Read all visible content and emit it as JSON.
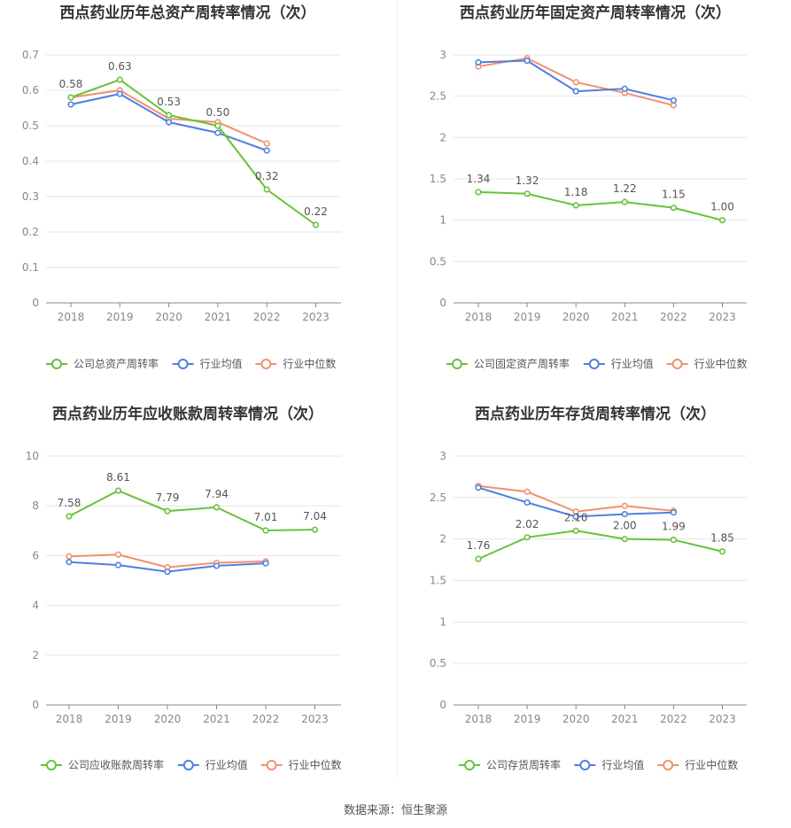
{
  "source": "数据来源：恒生聚源",
  "colors": {
    "company": "#67c23a",
    "avg": "#4e7fe0",
    "median": "#f3906e",
    "grid": "#e6e6e6",
    "axis": "#888888",
    "text": "#888888",
    "label": "#555555",
    "title": "#333333"
  },
  "chart_data": [
    {
      "type": "line",
      "title": "西点药业历年总资产周转率情况（次）",
      "categories": [
        "2018",
        "2019",
        "2020",
        "2021",
        "2022",
        "2023"
      ],
      "ylim": [
        0,
        0.7
      ],
      "yticks": [
        "0",
        "0.1",
        "0.2",
        "0.3",
        "0.4",
        "0.5",
        "0.6",
        "0.7"
      ],
      "grid": true,
      "legend_position": "bottom",
      "series": [
        {
          "name": "公司总资产周转率",
          "color": "company",
          "values": [
            0.58,
            0.63,
            0.53,
            0.5,
            0.32,
            0.22
          ],
          "labels": [
            "0.58",
            "0.63",
            "0.53",
            "0.50",
            "0.32",
            "0.22"
          ]
        },
        {
          "name": "行业均值",
          "color": "avg",
          "values": [
            0.56,
            0.59,
            0.51,
            0.48,
            0.43,
            null
          ]
        },
        {
          "name": "行业中位数",
          "color": "median",
          "values": [
            0.58,
            0.6,
            0.52,
            0.51,
            0.45,
            null
          ]
        }
      ]
    },
    {
      "type": "line",
      "title": "西点药业历年固定资产周转率情况（次）",
      "categories": [
        "2018",
        "2019",
        "2020",
        "2021",
        "2022",
        "2023"
      ],
      "ylim": [
        0,
        3
      ],
      "yticks": [
        "0",
        "0.5",
        "1",
        "1.5",
        "2",
        "2.5",
        "3"
      ],
      "grid": true,
      "legend_position": "bottom",
      "series": [
        {
          "name": "公司固定资产周转率",
          "color": "company",
          "values": [
            1.34,
            1.32,
            1.18,
            1.22,
            1.15,
            1.0
          ],
          "labels": [
            "1.34",
            "1.32",
            "1.18",
            "1.22",
            "1.15",
            "1.00"
          ]
        },
        {
          "name": "行业均值",
          "color": "avg",
          "values": [
            2.91,
            2.93,
            2.56,
            2.59,
            2.45,
            null
          ]
        },
        {
          "name": "行业中位数",
          "color": "median",
          "values": [
            2.86,
            2.96,
            2.67,
            2.54,
            2.39,
            null
          ]
        }
      ]
    },
    {
      "type": "line",
      "title": "西点药业历年应收账款周转率情况（次）",
      "categories": [
        "2018",
        "2019",
        "2020",
        "2021",
        "2022",
        "2023"
      ],
      "ylim": [
        0,
        10
      ],
      "yticks": [
        "0",
        "2",
        "4",
        "6",
        "8",
        "10"
      ],
      "grid": true,
      "legend_position": "bottom",
      "series": [
        {
          "name": "公司应收账款周转率",
          "color": "company",
          "values": [
            7.58,
            8.61,
            7.79,
            7.94,
            7.01,
            7.04
          ],
          "labels": [
            "7.58",
            "8.61",
            "7.79",
            "7.94",
            "7.01",
            "7.04"
          ]
        },
        {
          "name": "行业均值",
          "color": "avg",
          "values": [
            5.74,
            5.62,
            5.35,
            5.59,
            5.69,
            null
          ]
        },
        {
          "name": "行业中位数",
          "color": "median",
          "values": [
            5.97,
            6.04,
            5.53,
            5.71,
            5.77,
            null
          ]
        }
      ]
    },
    {
      "type": "line",
      "title": "西点药业历年存货周转率情况（次）",
      "categories": [
        "2018",
        "2019",
        "2020",
        "2021",
        "2022",
        "2023"
      ],
      "ylim": [
        0,
        3
      ],
      "yticks": [
        "0",
        "0.5",
        "1",
        "1.5",
        "2",
        "2.5",
        "3"
      ],
      "grid": true,
      "legend_position": "bottom",
      "series": [
        {
          "name": "公司存货周转率",
          "color": "company",
          "values": [
            1.76,
            2.02,
            2.1,
            2.0,
            1.99,
            1.85
          ],
          "labels": [
            "1.76",
            "2.02",
            "2.10",
            "2.00",
            "1.99",
            "1.85"
          ]
        },
        {
          "name": "行业均值",
          "color": "avg",
          "values": [
            2.62,
            2.44,
            2.27,
            2.3,
            2.32,
            null
          ]
        },
        {
          "name": "行业中位数",
          "color": "median",
          "values": [
            2.64,
            2.57,
            2.33,
            2.4,
            2.34,
            null
          ]
        }
      ]
    }
  ]
}
